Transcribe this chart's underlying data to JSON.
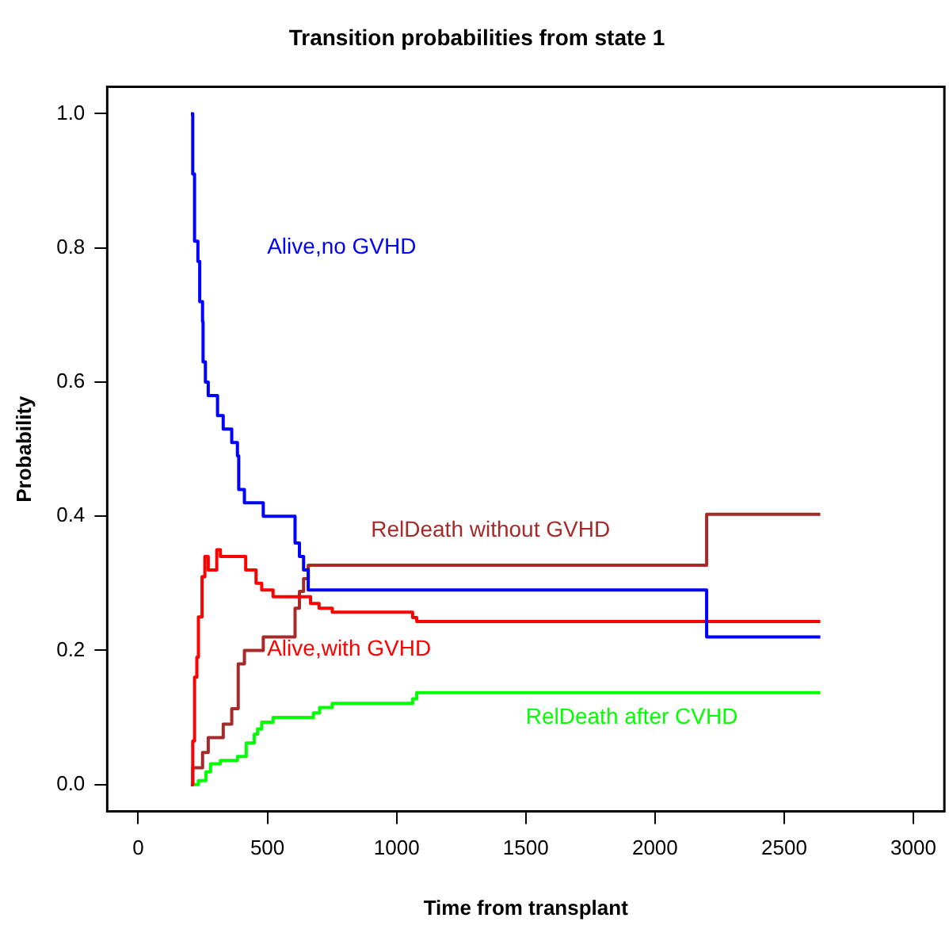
{
  "chart_data": {
    "type": "step",
    "title": "Transition probabilities from state 1",
    "xlabel": "Time from transplant",
    "ylabel": "Probability",
    "xlim": [
      -120,
      3120
    ],
    "xticks": [
      0,
      500,
      1000,
      1500,
      2000,
      2500,
      3000
    ],
    "ylim": [
      -0.04,
      1.04
    ],
    "yticks": [
      {
        "value": 0,
        "label": "0.0"
      },
      0.2,
      0.4,
      0.6,
      0.8,
      {
        "value": 1,
        "label": "1.0"
      }
    ],
    "grid": false,
    "legend": false,
    "series": [
      {
        "name": "Alive,no GVHD",
        "color": "#0000ff",
        "x": [
          204,
          211,
          218,
          231,
          238,
          249,
          251,
          260,
          271,
          307,
          329,
          362,
          384,
          389,
          411,
          484,
          607,
          624,
          640,
          658,
          2200,
          2640
        ],
        "values": [
          1,
          0.91,
          0.81,
          0.78,
          0.72,
          0.69,
          0.63,
          0.6,
          0.58,
          0.55,
          0.53,
          0.51,
          0.49,
          0.44,
          0.42,
          0.4,
          0.36,
          0.34,
          0.32,
          0.29,
          0.22,
          0.22
        ]
      },
      {
        "name": "Alive,with GVHD",
        "color": "#ff0000",
        "x": [
          204,
          211,
          218,
          227,
          233,
          247,
          258,
          271,
          304,
          318,
          416,
          456,
          478,
          522,
          667,
          700,
          751,
          1062,
          1078,
          2640
        ],
        "values": [
          0,
          0.065,
          0.16,
          0.19,
          0.25,
          0.31,
          0.34,
          0.32,
          0.35,
          0.34,
          0.32,
          0.3,
          0.29,
          0.28,
          0.27,
          0.263,
          0.257,
          0.249,
          0.243,
          0.243
        ]
      },
      {
        "name": "RelDeath without GVHD",
        "color": "#a52a2a",
        "x": [
          204,
          211,
          249,
          271,
          329,
          362,
          387,
          411,
          484,
          607,
          624,
          640,
          658,
          2200,
          2640
        ],
        "values": [
          0,
          0.025,
          0.048,
          0.07,
          0.09,
          0.113,
          0.18,
          0.2,
          0.22,
          0.263,
          0.288,
          0.307,
          0.327,
          0.403,
          0.403
        ]
      },
      {
        "name": "RelDeath after CVHD",
        "color": "#00ff00",
        "x": [
          204,
          233,
          262,
          280,
          318,
          384,
          418,
          449,
          462,
          478,
          522,
          678,
          702,
          751,
          1062,
          1078,
          2640
        ],
        "values": [
          0,
          0.006,
          0.019,
          0.031,
          0.036,
          0.042,
          0.062,
          0.075,
          0.083,
          0.093,
          0.1,
          0.107,
          0.115,
          0.121,
          0.128,
          0.137,
          0.137
        ]
      }
    ]
  }
}
